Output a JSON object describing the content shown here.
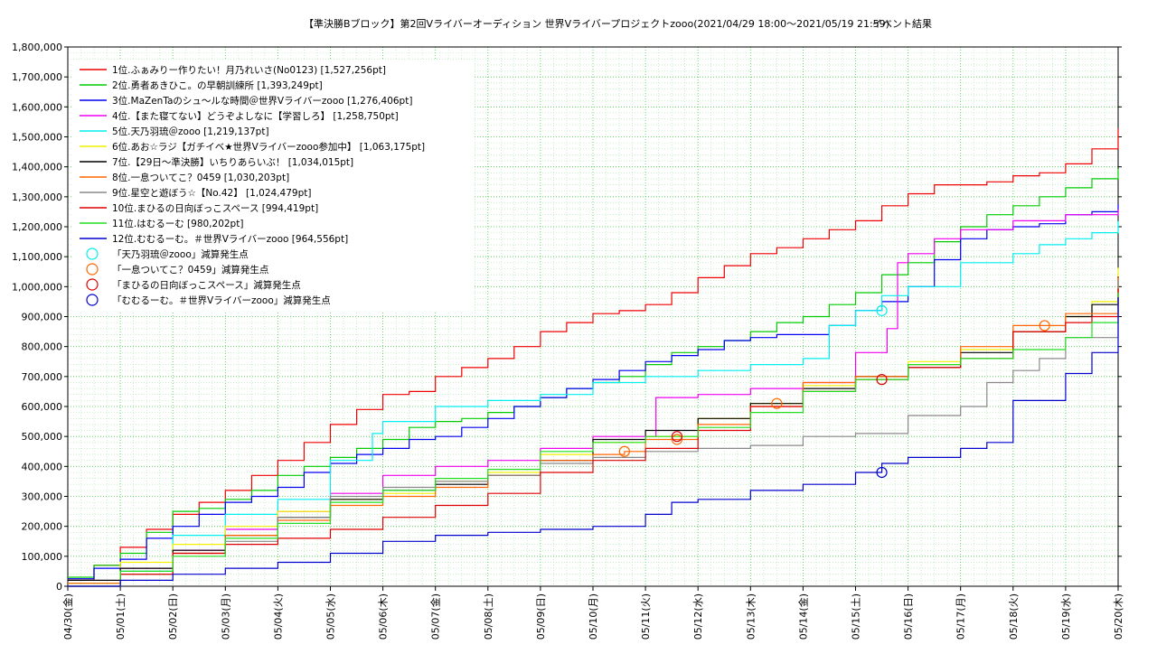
{
  "chart_data": {
    "type": "line",
    "title": "【準決勝Bブロック】第2回Vライバーオーディション 世界Vライバープロジェクトzooo(2021/04/29 18:00～2021/05/19 21:59)",
    "subtitle": "イベント結果",
    "xlabel": "",
    "ylabel": "",
    "ylim": [
      0,
      1800000
    ],
    "xlim_days": [
      0,
      20
    ],
    "grid": true,
    "legend_placement": "top-left",
    "x_ticks": [
      "04/30(金)",
      "05/01(土)",
      "05/02(日)",
      "05/03(月)",
      "05/04(火)",
      "05/05(水)",
      "05/06(木)",
      "05/07(金)",
      "05/08(土)",
      "05/09(日)",
      "05/10(月)",
      "05/11(火)",
      "05/12(水)",
      "05/13(木)",
      "05/14(金)",
      "05/15(土)",
      "05/16(日)",
      "05/17(月)",
      "05/18(火)",
      "05/19(水)",
      "05/20(木)"
    ],
    "y_ticks": [
      "0",
      "100,000",
      "200,000",
      "300,000",
      "400,000",
      "500,000",
      "600,000",
      "700,000",
      "800,000",
      "900,000",
      "1,000,000",
      "1,100,000",
      "1,200,000",
      "1,300,000",
      "1,400,000",
      "1,500,000",
      "1,600,000",
      "1,700,000",
      "1,800,000"
    ],
    "series": [
      {
        "name": "1位.ふぁみりー作りたい！月乃れいさ(No0123) [1,527,256pt]",
        "color": "#ee0000",
        "x": [
          0,
          0.5,
          1,
          1.5,
          2,
          2.5,
          3,
          3.5,
          4,
          4.5,
          5,
          5.5,
          6,
          6.5,
          7,
          7.5,
          8,
          8.5,
          9,
          9.5,
          10,
          10.5,
          11,
          11.5,
          12,
          12.5,
          13,
          13.5,
          14,
          14.5,
          15,
          15.5,
          16,
          16.5,
          17,
          17.5,
          18,
          18.5,
          19,
          19.5,
          20
        ],
        "y": [
          20000,
          70000,
          130000,
          190000,
          240000,
          280000,
          320000,
          370000,
          420000,
          480000,
          540000,
          590000,
          640000,
          650000,
          700000,
          730000,
          760000,
          800000,
          850000,
          880000,
          910000,
          920000,
          940000,
          980000,
          1030000,
          1070000,
          1110000,
          1130000,
          1160000,
          1190000,
          1220000,
          1270000,
          1310000,
          1340000,
          1340000,
          1350000,
          1370000,
          1380000,
          1410000,
          1460000,
          1527256
        ]
      },
      {
        "name": "2位.勇者あきひこ。の早朝訓練所 [1,393,249pt]",
        "color": "#00cc00",
        "x": [
          0,
          0.5,
          1,
          1.5,
          2,
          2.5,
          3,
          3.5,
          4,
          4.5,
          5,
          5.5,
          6,
          6.5,
          7,
          7.5,
          8,
          8.5,
          9,
          9.5,
          10,
          10.5,
          11,
          11.5,
          12,
          12.5,
          13,
          13.5,
          14,
          14.5,
          15,
          15.5,
          16,
          16.5,
          17,
          17.5,
          18,
          18.5,
          19,
          19.5,
          20
        ],
        "y": [
          30000,
          70000,
          110000,
          180000,
          250000,
          260000,
          290000,
          320000,
          370000,
          400000,
          430000,
          460000,
          490000,
          530000,
          550000,
          560000,
          580000,
          600000,
          630000,
          660000,
          680000,
          700000,
          740000,
          780000,
          800000,
          820000,
          850000,
          880000,
          900000,
          940000,
          980000,
          1040000,
          1080000,
          1150000,
          1200000,
          1240000,
          1270000,
          1300000,
          1330000,
          1360000,
          1393249
        ]
      },
      {
        "name": "3位.MaZenTaのシュ〜ルな時間＠世界Vライバーzooo [1,276,406pt]",
        "color": "#0000ee",
        "x": [
          0,
          0.5,
          1,
          1.5,
          2,
          2.5,
          3,
          3.5,
          4,
          4.5,
          5,
          5.5,
          6,
          6.5,
          7,
          7.5,
          8,
          8.5,
          9,
          9.5,
          10,
          10.5,
          11,
          11.5,
          12,
          12.5,
          13,
          13.5,
          14,
          14.5,
          15,
          15.5,
          16,
          16.5,
          17,
          17.5,
          18,
          18.5,
          19,
          19.5,
          20
        ],
        "y": [
          25000,
          60000,
          90000,
          160000,
          200000,
          240000,
          280000,
          300000,
          330000,
          380000,
          410000,
          440000,
          460000,
          490000,
          500000,
          530000,
          560000,
          600000,
          630000,
          660000,
          690000,
          720000,
          750000,
          770000,
          790000,
          820000,
          830000,
          840000,
          840000,
          870000,
          920000,
          950000,
          1000000,
          1090000,
          1160000,
          1190000,
          1200000,
          1210000,
          1240000,
          1250000,
          1276406
        ]
      },
      {
        "name": "4位.【また寝てない】どうぞよしなに【学習しろ】 [1,258,750pt]",
        "color": "#ee00ee",
        "x": [
          0,
          1,
          2,
          3,
          4,
          5,
          6,
          7,
          8,
          9,
          10,
          11,
          11.2,
          12,
          13,
          14,
          15,
          15.6,
          15.8,
          16,
          16.5,
          17,
          18,
          19,
          20
        ],
        "y": [
          10000,
          60000,
          120000,
          190000,
          250000,
          310000,
          370000,
          400000,
          420000,
          460000,
          500000,
          500000,
          630000,
          640000,
          660000,
          680000,
          780000,
          860000,
          1080000,
          1110000,
          1160000,
          1190000,
          1220000,
          1240000,
          1258750
        ]
      },
      {
        "name": "5位.天乃羽琉＠zooo [1,219,137pt]",
        "color": "#00eeee",
        "x": [
          0,
          1,
          2,
          3,
          4,
          5,
          5.8,
          6,
          7,
          8,
          9,
          10,
          11,
          12,
          13,
          14,
          14.5,
          15,
          15.5,
          16,
          17,
          18,
          18.5,
          19,
          19.5,
          20
        ],
        "y": [
          10000,
          50000,
          170000,
          240000,
          290000,
          420000,
          510000,
          550000,
          600000,
          620000,
          640000,
          680000,
          700000,
          720000,
          740000,
          760000,
          870000,
          920000,
          970000,
          1000000,
          1080000,
          1110000,
          1140000,
          1160000,
          1180000,
          1219137
        ]
      },
      {
        "name": "6位.あお☆ラジ【ガチイベ★世界Vライバーzooo参加中】 [1,063,175pt]",
        "color": "#f0f000",
        "x": [
          0,
          1,
          2,
          3,
          4,
          5,
          6,
          7,
          8,
          9,
          10,
          11,
          12,
          13,
          14,
          15,
          16,
          17,
          18,
          19,
          19.5,
          20
        ],
        "y": [
          10000,
          80000,
          140000,
          200000,
          250000,
          290000,
          310000,
          350000,
          380000,
          440000,
          480000,
          500000,
          560000,
          610000,
          670000,
          700000,
          750000,
          790000,
          850000,
          900000,
          950000,
          1063175
        ]
      },
      {
        "name": "7位.【29日〜準決勝】いちりあらいぶ！ [1,034,015pt]",
        "color": "#000000",
        "x": [
          0,
          1,
          2,
          3,
          4,
          5,
          6,
          7,
          8,
          9,
          10,
          11,
          12,
          13,
          14,
          15,
          16,
          17,
          18,
          19,
          19.5,
          20
        ],
        "y": [
          20000,
          60000,
          120000,
          170000,
          230000,
          290000,
          320000,
          340000,
          370000,
          420000,
          490000,
          520000,
          560000,
          610000,
          660000,
          700000,
          730000,
          780000,
          850000,
          900000,
          940000,
          1034015
        ]
      },
      {
        "name": "8位.一息ついてこ？0459 [1,030,203pt]",
        "color": "#ff6600",
        "x": [
          0,
          1,
          2,
          3,
          4,
          5,
          6,
          7,
          8,
          9,
          10,
          10.6,
          11,
          12,
          13,
          14,
          15,
          16,
          17,
          18,
          19,
          20
        ],
        "y": [
          10000,
          40000,
          110000,
          170000,
          220000,
          270000,
          300000,
          330000,
          370000,
          420000,
          440000,
          450000,
          490000,
          540000,
          600000,
          680000,
          700000,
          740000,
          800000,
          870000,
          910000,
          1030203
        ]
      },
      {
        "name": "9位.星空と遊ぼう☆【No.42】 [1,024,479pt]",
        "color": "#888888",
        "x": [
          0,
          1,
          2,
          3,
          4,
          5,
          6,
          7,
          8,
          9,
          10,
          11,
          12,
          13,
          14,
          15,
          16,
          17,
          17.5,
          18,
          18.5,
          19,
          20
        ],
        "y": [
          0,
          40000,
          110000,
          150000,
          230000,
          300000,
          330000,
          350000,
          370000,
          410000,
          430000,
          450000,
          460000,
          470000,
          500000,
          510000,
          570000,
          600000,
          680000,
          720000,
          760000,
          830000,
          1024479
        ]
      },
      {
        "name": "10位.まひるの日向ぼっこスペース [994,419pt]",
        "color": "#dd0000",
        "x": [
          0,
          1,
          2,
          3,
          4,
          5,
          6,
          7,
          8,
          9,
          10,
          11,
          12,
          13,
          14,
          15,
          16,
          17,
          18,
          19,
          19.5,
          20
        ],
        "y": [
          0,
          40000,
          110000,
          140000,
          160000,
          190000,
          230000,
          270000,
          310000,
          380000,
          420000,
          460000,
          520000,
          600000,
          650000,
          690000,
          730000,
          760000,
          850000,
          880000,
          900000,
          994419
        ]
      },
      {
        "name": "11位.はむるーむ [980,202pt]",
        "color": "#22dd22",
        "x": [
          0,
          1,
          2,
          3,
          4,
          5,
          6,
          7,
          8,
          9,
          10,
          11,
          12,
          13,
          14,
          15,
          16,
          17,
          18,
          19,
          19.5,
          20
        ],
        "y": [
          0,
          50000,
          100000,
          160000,
          210000,
          280000,
          320000,
          360000,
          390000,
          450000,
          480000,
          500000,
          530000,
          580000,
          650000,
          690000,
          740000,
          760000,
          790000,
          830000,
          880000,
          980202
        ]
      },
      {
        "name": "12位.むむるーむ。＃世界Vライバーzooo [964,556pt]",
        "color": "#0000cc",
        "x": [
          0,
          1,
          2,
          3,
          4,
          5,
          6,
          7,
          8,
          9,
          10,
          11,
          11.5,
          12,
          13,
          14,
          15,
          15.5,
          16,
          17,
          17.5,
          18,
          19,
          19.5,
          20
        ],
        "y": [
          0,
          20000,
          40000,
          60000,
          80000,
          110000,
          150000,
          170000,
          180000,
          190000,
          200000,
          240000,
          280000,
          290000,
          320000,
          340000,
          380000,
          410000,
          430000,
          460000,
          480000,
          620000,
          710000,
          780000,
          964556
        ]
      }
    ],
    "markers": [
      {
        "name": "「天乃羽琉＠zooo」減算発生点",
        "color": "#00eeee",
        "points": [
          {
            "x": 15.5,
            "y": 920000
          }
        ]
      },
      {
        "name": "「一息ついてこ？0459」減算発生点",
        "color": "#ff6600",
        "points": [
          {
            "x": 10.6,
            "y": 450000
          },
          {
            "x": 11.6,
            "y": 490000
          },
          {
            "x": 13.5,
            "y": 610000
          },
          {
            "x": 18.6,
            "y": 870000
          }
        ]
      },
      {
        "name": "「まひるの日向ぼっこスペース」減算発生点",
        "color": "#dd0000",
        "points": [
          {
            "x": 11.6,
            "y": 500000
          },
          {
            "x": 15.5,
            "y": 690000
          }
        ]
      },
      {
        "name": "「むむるーむ。＃世界Vライバーzooo」減算発生点",
        "color": "#0000cc",
        "points": [
          {
            "x": 15.5,
            "y": 380000
          }
        ]
      }
    ]
  }
}
